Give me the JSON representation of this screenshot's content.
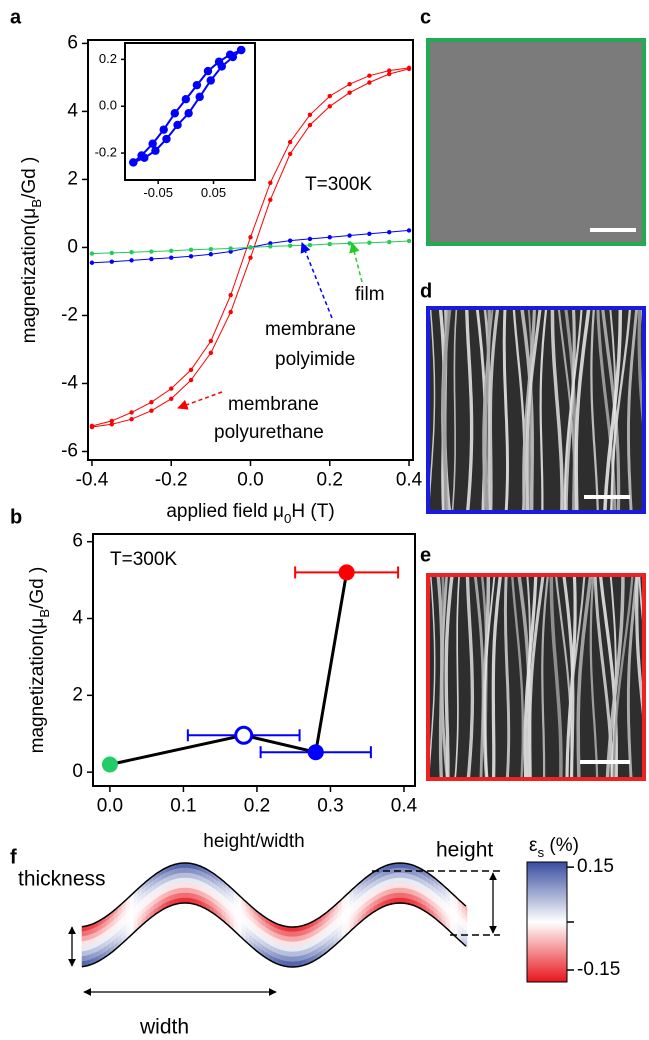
{
  "chart_data": [
    {
      "panel": "a",
      "type": "line",
      "x_label": [
        {
          "text": "applied field μ"
        },
        {
          "text": "0",
          "sub": true
        },
        {
          "text": "H (T)"
        }
      ],
      "y_label": [
        {
          "text": "magnetization(μ"
        },
        {
          "text": "B",
          "sub": true
        },
        {
          "text": "/Gd )"
        }
      ],
      "xlim": [
        -0.41,
        0.41
      ],
      "ylim": [
        -6.25,
        6.1
      ],
      "xticks": [
        -0.4,
        -0.2,
        {
          "value": 0,
          "label": "0.0"
        },
        0.2,
        0.4
      ],
      "yticks": [
        -6,
        -4,
        -2,
        0,
        2,
        4,
        6
      ],
      "annotations": [
        "T=300K",
        "film",
        "membrane",
        "polyimide",
        "membrane",
        "polyurethane"
      ],
      "series": [
        {
          "color": "#ff0000",
          "x": [
            -0.4,
            -0.35,
            -0.3,
            -0.25,
            -0.2,
            -0.15,
            -0.1,
            -0.05,
            0,
            0.05,
            0.1,
            0.15,
            0.2,
            0.25,
            0.3,
            0.35,
            0.4
          ],
          "values": [
            -5.28,
            -5.2,
            -5.05,
            -4.8,
            -4.45,
            -3.9,
            -3.1,
            -1.9,
            -0.3,
            1.4,
            2.75,
            3.6,
            4.15,
            4.55,
            4.85,
            5.1,
            5.25
          ]
        },
        {
          "color": "#ff0000",
          "x": [
            0.4,
            0.35,
            0.3,
            0.25,
            0.2,
            0.15,
            0.1,
            0.05,
            0,
            -0.05,
            -0.1,
            -0.15,
            -0.2,
            -0.25,
            -0.3,
            -0.35,
            -0.4
          ],
          "values": [
            5.28,
            5.2,
            5.05,
            4.8,
            4.45,
            3.9,
            3.1,
            1.9,
            0.3,
            -1.4,
            -2.75,
            -3.6,
            -4.15,
            -4.55,
            -4.85,
            -5.1,
            -5.25
          ]
        },
        {
          "color": "#0000ff",
          "x": [
            -0.4,
            -0.35,
            -0.3,
            -0.25,
            -0.2,
            -0.15,
            -0.1,
            -0.05,
            0,
            0.05,
            0.1,
            0.15,
            0.2,
            0.25,
            0.3,
            0.35,
            0.4
          ],
          "values": [
            -0.45,
            -0.42,
            -0.38,
            -0.34,
            -0.3,
            -0.26,
            -0.2,
            -0.12,
            0.0,
            0.12,
            0.2,
            0.25,
            0.3,
            0.35,
            0.4,
            0.45,
            0.5
          ]
        },
        {
          "color": "#22cc55",
          "x": [
            -0.4,
            -0.35,
            -0.3,
            -0.25,
            -0.2,
            -0.15,
            -0.1,
            -0.05,
            0,
            0.05,
            0.1,
            0.15,
            0.2,
            0.25,
            0.3,
            0.35,
            0.4
          ],
          "values": [
            -0.18,
            -0.16,
            -0.14,
            -0.12,
            -0.1,
            -0.07,
            -0.05,
            -0.03,
            0,
            0.03,
            0.05,
            0.07,
            0.1,
            0.12,
            0.14,
            0.16,
            0.19
          ]
        }
      ]
    },
    {
      "type": "line",
      "xlim": [
        -0.11,
        0.125
      ],
      "ylim": [
        -0.315,
        0.27
      ],
      "xticks": [
        -0.05,
        0.05
      ],
      "yticks": [
        -0.2,
        {
          "value": 0,
          "label": "0.0"
        },
        0.2
      ],
      "series": [
        {
          "color": "#0000ff",
          "x": [
            -0.095,
            -0.075,
            -0.055,
            -0.035,
            -0.015,
            0.005,
            0.025,
            0.045,
            0.065,
            0.085,
            0.1
          ],
          "values": [
            -0.24,
            -0.22,
            -0.19,
            -0.14,
            -0.08,
            -0.03,
            0.04,
            0.11,
            0.17,
            0.21,
            0.24
          ]
        },
        {
          "color": "#0000ff",
          "x": [
            0.1,
            0.08,
            0.06,
            0.04,
            0.02,
            0,
            -0.02,
            -0.04,
            -0.06,
            -0.08,
            -0.095
          ],
          "values": [
            0.24,
            0.22,
            0.19,
            0.15,
            0.09,
            0.03,
            -0.03,
            -0.1,
            -0.16,
            -0.21,
            -0.24
          ]
        }
      ]
    },
    {
      "panel": "b",
      "type": "scatter",
      "x_label": [
        {
          "text": "height/width"
        }
      ],
      "y_label": [
        {
          "text": "magnetization(μ"
        },
        {
          "text": "B",
          "sub": true
        },
        {
          "text": "/Gd )"
        }
      ],
      "xlim": [
        -0.023,
        0.415
      ],
      "ylim": [
        -0.36,
        6.2
      ],
      "xticks": [
        {
          "value": 0,
          "label": "0.0"
        },
        0.1,
        0.2,
        0.3,
        0.4
      ],
      "yticks": [
        0,
        2,
        4,
        6
      ],
      "annotations": [
        "T=300K"
      ],
      "connect": true,
      "series": [
        {
          "color": "#22cc66",
          "x": [
            0.0
          ],
          "values": [
            0.2
          ],
          "filled": true
        },
        {
          "color": "#0000ff",
          "x": [
            0.182
          ],
          "values": [
            0.96
          ],
          "xerr": [
            0.076
          ],
          "filled": false
        },
        {
          "color": "#0000ff",
          "x": [
            0.28
          ],
          "values": [
            0.52
          ],
          "xerr": [
            0.075
          ],
          "filled": true
        },
        {
          "color": "#ff0000",
          "x": [
            0.322
          ],
          "values": [
            5.2
          ],
          "xerr": [
            0.07
          ],
          "filled": true
        }
      ]
    },
    {
      "panel": "f",
      "type": "colorbar",
      "title": [
        {
          "text": "ε"
        },
        {
          "text": "s",
          "sub": true
        },
        {
          "text": " (%)"
        }
      ],
      "ylim": [
        -0.185,
        0.165
      ],
      "yticks": [
        0.15,
        -0.15
      ],
      "colors": [
        "#e8141c",
        "#ffffff",
        "#3a4ea0"
      ]
    }
  ],
  "images": [
    {
      "panel": "c"
    },
    {
      "panel": "d"
    },
    {
      "panel": "e"
    }
  ],
  "diagram": {
    "labels": [
      "thickness",
      "height",
      "width"
    ]
  }
}
